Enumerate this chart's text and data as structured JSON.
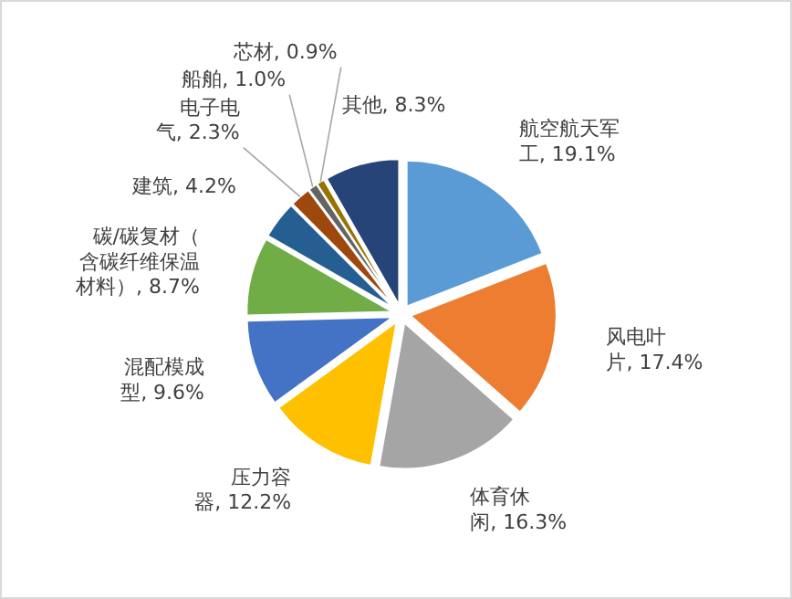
{
  "chart_data": {
    "type": "pie",
    "categories": [
      "航空航天军工",
      "风电叶片",
      "体育休闲",
      "压力容器",
      "混配模成型",
      "碳/碳复材（含碳纤维保温材料）",
      "建筑",
      "电子电气",
      "船舶",
      "芯材",
      "其他"
    ],
    "values": [
      19.1,
      17.4,
      16.3,
      12.2,
      9.6,
      8.7,
      4.2,
      2.3,
      1.0,
      0.9,
      8.3
    ],
    "value_labels": [
      "19.1%",
      "17.4%",
      "16.3%",
      "12.2%",
      "9.6%",
      "8.7%",
      "4.2%",
      "2.3%",
      "1.0%",
      "0.9%",
      "8.3%"
    ],
    "colors": [
      "#5b9bd5",
      "#ed7d31",
      "#a5a5a5",
      "#ffc000",
      "#4472c4",
      "#70ad47",
      "#255e91",
      "#9e480e",
      "#636363",
      "#997300",
      "#264478"
    ],
    "data_labels": true,
    "legend": false
  }
}
